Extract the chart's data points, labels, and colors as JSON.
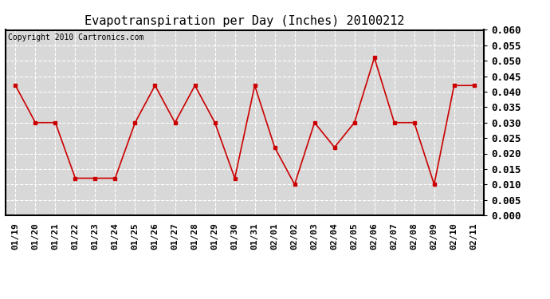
{
  "title": "Evapotranspiration per Day (Inches) 20100212",
  "copyright_text": "Copyright 2010 Cartronics.com",
  "labels": [
    "01/19",
    "01/20",
    "01/21",
    "01/22",
    "01/23",
    "01/24",
    "01/25",
    "01/26",
    "01/27",
    "01/28",
    "01/29",
    "01/30",
    "01/31",
    "02/01",
    "02/02",
    "02/03",
    "02/04",
    "02/05",
    "02/06",
    "02/07",
    "02/08",
    "02/09",
    "02/10",
    "02/11"
  ],
  "values": [
    0.042,
    0.03,
    0.03,
    0.012,
    0.012,
    0.012,
    0.03,
    0.042,
    0.03,
    0.042,
    0.03,
    0.012,
    0.042,
    0.022,
    0.01,
    0.03,
    0.022,
    0.03,
    0.051,
    0.03,
    0.03,
    0.01,
    0.042,
    0.042
  ],
  "line_color": "#cc0000",
  "marker": "s",
  "marker_size": 3,
  "ylim": [
    0.0,
    0.06
  ],
  "ytick_step": 0.005,
  "background_color": "#d8d8d8",
  "grid_color": "#ffffff",
  "title_fontsize": 11,
  "copyright_fontsize": 7,
  "tick_fontsize": 8,
  "ytick_fontsize": 9
}
